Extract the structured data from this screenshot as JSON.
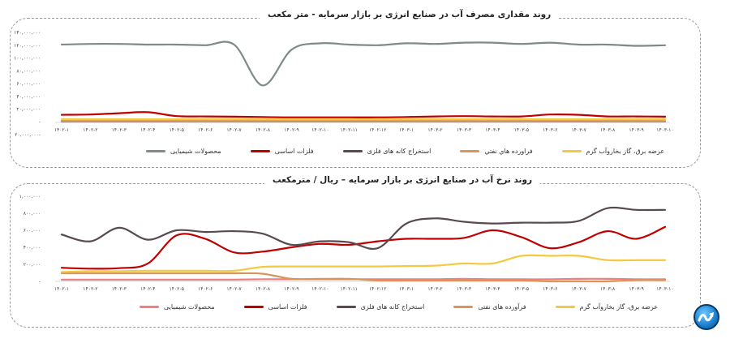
{
  "charts": {
    "top": {
      "title": "روند مقداری مصرف آب در صنایع انرژی بر بازار سرمایه - متر مکعب",
      "y_ticks": [
        "۱۴۰,۰۰۰,۰۰۰",
        "۱۲۰,۰۰۰,۰۰۰",
        "۱۰۰,۰۰۰,۰۰۰",
        "۸۰,۰۰۰,۰۰۰",
        "۶۰,۰۰۰,۰۰۰",
        "۴۰,۰۰۰,۰۰۰",
        "۲۰,۰۰۰,۰۰۰",
        "-",
        "۲۰,۰۰۰,۰۰۰-"
      ],
      "legend": [
        "محصولات شیمیایی",
        "فلزات اساسی",
        "استخراج کانه های فلزی",
        "فراورده هاي نفتي",
        "عرضه برق، گاز بخاروآب گرم"
      ]
    },
    "bottom": {
      "title": "روند نرخ آب در صنایع انرژی بر بازار سرمایه – ریال / مترمکعب",
      "y_ticks": [
        "۱,۰۰۰,۰۰۰",
        "۸۰۰,۰۰۰",
        "۶۰۰,۰۰۰",
        "۴۰۰,۰۰۰",
        "۲۰۰,۰۰۰",
        "-"
      ],
      "legend": [
        "محصولات شیمیایی",
        "فلزات اساسی",
        "استخراج کانه های فلزی",
        "فرآورده های نفتی",
        "عرضه برق، گاز بخاروآب گرم"
      ]
    }
  },
  "x_labels": [
    "۱۴۰۲-۱",
    "۱۴۰۲-۲",
    "۱۴۰۲-۳",
    "۱۴۰۲-۴",
    "۱۴۰۲-۵",
    "۱۴۰۲-۶",
    "۱۴۰۲-۷",
    "۱۴۰۲-۸",
    "۱۴۰۲-۹",
    "۱۴۰۲-۱۰",
    "۱۴۰۲-۱۱",
    "۱۴۰۲-۱۲",
    "۱۴۰۳-۱",
    "۱۴۰۳-۲",
    "۱۴۰۳-۳",
    "۱۴۰۳-۴",
    "۱۴۰۳-۵",
    "۱۴۰۳-۶",
    "۱۴۰۳-۷",
    "۱۴۰۳-۸",
    "۱۴۰۳-۹",
    "۱۴۰۳-۱۰"
  ],
  "colors": {
    "petrochemicals_top": "#7f8a8a",
    "petrochemicals_bottom": "#f08080",
    "basic_metals": "#c00000",
    "metal_ore_mining": "#5a4a4f",
    "oil_products": "#d9955a",
    "utilities": "#f5c842"
  },
  "chart_data": [
    {
      "type": "line",
      "title": "روند مقداری مصرف آب در صنایع انرژی بر بازار سرمایه - متر مکعب",
      "xlabel": "",
      "ylabel": "متر مکعب",
      "ylim": [
        -20000000,
        140000000
      ],
      "grid": false,
      "legend_position": "bottom",
      "x": [
        "1402-1",
        "1402-2",
        "1402-3",
        "1402-4",
        "1402-5",
        "1402-6",
        "1402-7",
        "1402-8",
        "1402-9",
        "1402-10",
        "1402-11",
        "1402-12",
        "1403-1",
        "1403-2",
        "1403-3",
        "1403-4",
        "1403-5",
        "1403-6",
        "1403-7",
        "1403-8",
        "1403-9",
        "1403-10"
      ],
      "series": [
        {
          "name": "محصولات شیمیایی",
          "values": [
            121000000,
            122000000,
            122000000,
            121000000,
            121000000,
            120000000,
            121000000,
            57000000,
            113000000,
            123000000,
            121000000,
            120000000,
            123000000,
            122000000,
            124000000,
            124000000,
            122000000,
            124000000,
            121000000,
            121000000,
            119000000,
            120000000
          ]
        },
        {
          "name": "فلزات اساسی",
          "values": [
            11000000,
            11500000,
            13500000,
            15000000,
            9000000,
            8500000,
            8000000,
            7500000,
            7000000,
            7000000,
            7000000,
            7000000,
            7500000,
            8500000,
            9000000,
            8500000,
            8500000,
            11500000,
            11000000,
            8500000,
            8500000,
            8000000
          ]
        },
        {
          "name": "استخراج کانه های فلزی",
          "values": [
            1000000,
            1000000,
            1000000,
            1000000,
            1000000,
            1000000,
            1000000,
            1000000,
            1000000,
            1000000,
            1000000,
            1000000,
            1000000,
            1000000,
            1000000,
            1000000,
            1000000,
            1000000,
            1000000,
            1000000,
            1000000,
            1000000
          ]
        },
        {
          "name": "فراورده هاي نفتي",
          "values": [
            1500000,
            1500000,
            1500000,
            1500000,
            1500000,
            1500000,
            1500000,
            1500000,
            1500000,
            1500000,
            1500000,
            1500000,
            1500000,
            1500000,
            1500000,
            1500000,
            1500000,
            1500000,
            1500000,
            1500000,
            1500000,
            1500000
          ]
        },
        {
          "name": "عرضه برق، گاز بخاروآب گرم",
          "values": [
            4000000,
            4000000,
            4000000,
            4000000,
            4000000,
            4000000,
            4000000,
            4000000,
            4000000,
            4000000,
            4000000,
            4000000,
            4000000,
            4000000,
            4000000,
            4000000,
            4000000,
            4000000,
            4000000,
            4000000,
            4000000,
            4000000
          ]
        }
      ]
    },
    {
      "type": "line",
      "title": "روند نرخ آب در صنایع انرژی بر بازار سرمایه – ریال / مترمکعب",
      "xlabel": "",
      "ylabel": "ریال / مترمکعب",
      "ylim": [
        0,
        1000000
      ],
      "grid": false,
      "legend_position": "bottom",
      "x": [
        "1402-1",
        "1402-2",
        "1402-3",
        "1402-4",
        "1402-5",
        "1402-6",
        "1402-7",
        "1402-8",
        "1402-9",
        "1402-10",
        "1402-11",
        "1402-12",
        "1403-1",
        "1403-2",
        "1403-3",
        "1403-4",
        "1403-5",
        "1403-6",
        "1403-7",
        "1403-8",
        "1403-9",
        "1403-10"
      ],
      "series": [
        {
          "name": "محصولات شیمیایی",
          "values": [
            20000,
            20000,
            20000,
            20000,
            20000,
            20000,
            20000,
            25000,
            25000,
            25000,
            25000,
            25000,
            25000,
            25000,
            30000,
            25000,
            25000,
            25000,
            30000,
            30000,
            25000,
            25000
          ]
        },
        {
          "name": "فلزات اساسی",
          "values": [
            160000,
            150000,
            155000,
            210000,
            540000,
            500000,
            340000,
            350000,
            400000,
            440000,
            430000,
            470000,
            500000,
            500000,
            510000,
            600000,
            520000,
            390000,
            460000,
            590000,
            500000,
            640000
          ]
        },
        {
          "name": "استخراج کانه های فلزی",
          "values": [
            550000,
            470000,
            630000,
            490000,
            600000,
            580000,
            590000,
            560000,
            430000,
            470000,
            460000,
            390000,
            680000,
            740000,
            700000,
            680000,
            690000,
            690000,
            710000,
            860000,
            840000,
            840000
          ]
        },
        {
          "name": "فرآورده های نفتی",
          "values": [
            95000,
            95000,
            95000,
            95000,
            95000,
            95000,
            95000,
            90000,
            30000,
            30000,
            30000,
            10000,
            10000,
            10000,
            10000,
            10000,
            10000,
            0,
            0,
            0,
            15000,
            15000
          ]
        },
        {
          "name": "عرضه برق، گاز بخاروآب گرم",
          "values": [
            110000,
            120000,
            120000,
            125000,
            125000,
            125000,
            125000,
            170000,
            175000,
            175000,
            175000,
            175000,
            180000,
            185000,
            210000,
            210000,
            300000,
            300000,
            300000,
            250000,
            250000,
            250000
          ]
        }
      ]
    }
  ]
}
